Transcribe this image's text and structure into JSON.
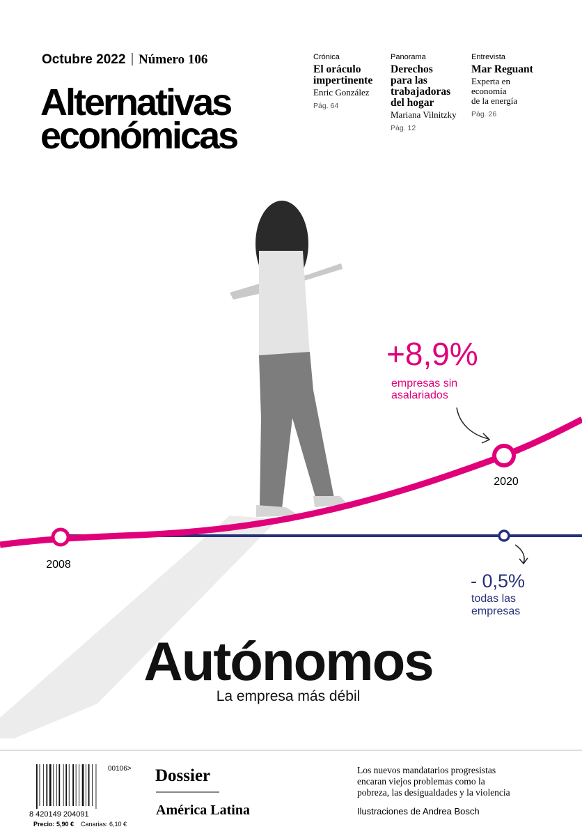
{
  "header": {
    "issue_date": "Octubre 2022",
    "issue_number": "Número 106",
    "title_line1": "Alternativas",
    "title_line2": "económicas"
  },
  "teasers": [
    {
      "section": "Crónica",
      "headline_lines": [
        "El oráculo",
        "impertinente"
      ],
      "author_lines": [
        "Enric González"
      ],
      "page": "Pág. 64"
    },
    {
      "section": "Panorama",
      "headline_lines": [
        "Derechos",
        "para las",
        "trabajadoras",
        "del hogar"
      ],
      "author_lines": [
        "Mariana Vilnitzky"
      ],
      "page": "Pág. 12"
    },
    {
      "section": "Entrevista",
      "headline_lines": [
        "Mar Reguant"
      ],
      "author_lines": [
        "Experta en",
        "economía",
        "de la energía"
      ],
      "page": "Pág. 26"
    }
  ],
  "graphic": {
    "pink_value": "+8,9%",
    "pink_label_lines": [
      "empresas sin",
      "asalariados"
    ],
    "end_year": "2020",
    "start_year": "2008",
    "navy_value": "- 0,5%",
    "navy_label_lines": [
      "todas las",
      "empresas"
    ]
  },
  "cover_story": {
    "title": "Autónomos",
    "subtitle": "La empresa más débil"
  },
  "footer": {
    "barcode_top": "00106>",
    "barcode_number": "8 420149 204091",
    "price": "Precio: 5,90 €",
    "price_canarias": "Canarias: 6,10 €",
    "dossier_label": "Dossier",
    "dossier_title": "América Latina",
    "dossier_text_lines": [
      "Los nuevos mandatarios progresistas",
      "encaran viejos problemas como la",
      "pobreza, las desigualdades y la violencia"
    ],
    "illustrations_credit": "Ilustraciones de",
    "illustrator": "Andrea Bosch"
  }
}
